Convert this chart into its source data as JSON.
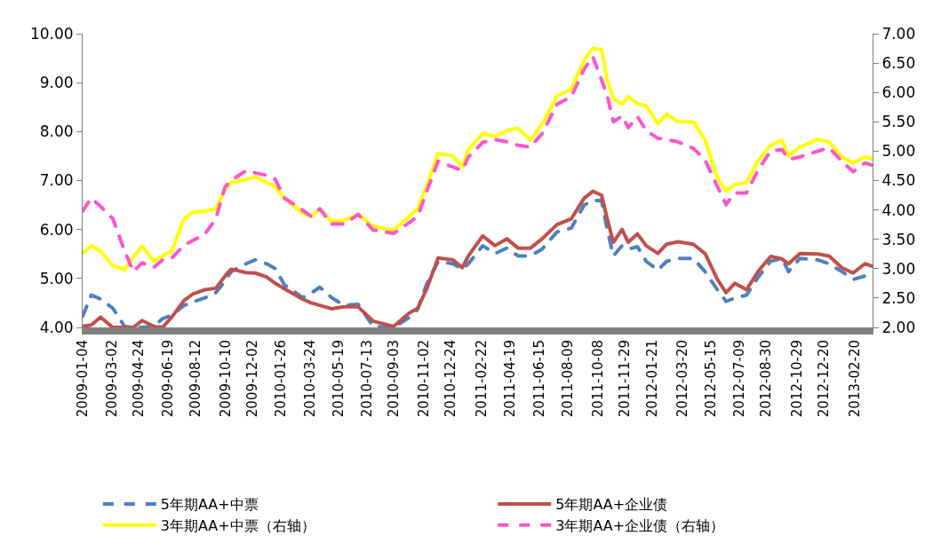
{
  "chart_data": {
    "type": "line",
    "x": [
      "2009-01-04",
      "2009-01-21",
      "2009-02-08",
      "2009-03-04",
      "2009-03-27",
      "2009-04-13",
      "2009-04-30",
      "2009-05-23",
      "2009-06-09",
      "2009-06-27",
      "2009-07-21",
      "2009-08-07",
      "2009-08-30",
      "2009-09-21",
      "2009-10-09",
      "2009-10-21",
      "2009-11-19",
      "2009-12-07",
      "2009-12-29",
      "2010-01-15",
      "2010-02-02",
      "2010-03-09",
      "2010-03-26",
      "2010-04-12",
      "2010-05-05",
      "2010-05-29",
      "2010-06-26",
      "2010-07-25",
      "2010-09-03",
      "2010-10-03",
      "2010-10-20",
      "2010-11-06",
      "2010-11-29",
      "2010-12-28",
      "2011-01-15",
      "2011-01-27",
      "2011-02-24",
      "2011-03-20",
      "2011-04-12",
      "2011-05-04",
      "2011-05-28",
      "2011-06-20",
      "2011-07-19",
      "2011-08-16",
      "2011-09-10",
      "2011-09-27",
      "2011-10-14",
      "2011-10-25",
      "2011-11-06",
      "2011-11-23",
      "2011-12-05",
      "2011-12-23",
      "2012-01-09",
      "2012-02-01",
      "2012-02-18",
      "2012-03-11",
      "2012-04-10",
      "2012-05-03",
      "2012-05-27",
      "2012-06-13",
      "2012-06-30",
      "2012-07-23",
      "2012-08-15",
      "2012-09-08",
      "2012-09-30",
      "2012-10-13",
      "2012-11-04",
      "2012-12-09",
      "2012-12-31",
      "2013-01-25",
      "2013-02-16",
      "2013-03-11",
      "2013-03-26"
    ],
    "series": [
      {
        "name": "5年期AA+中票",
        "color": "#4f81bd",
        "line_style": "dashed",
        "values": [
          4.23,
          4.66,
          4.58,
          4.39,
          4.02,
          4.0,
          4.0,
          4.02,
          4.18,
          4.25,
          4.45,
          4.52,
          4.6,
          4.71,
          4.95,
          5.14,
          5.3,
          5.38,
          5.3,
          5.2,
          4.87,
          4.61,
          4.7,
          4.82,
          4.61,
          4.45,
          4.47,
          4.02,
          4.0,
          4.2,
          4.37,
          4.87,
          5.35,
          5.3,
          5.19,
          5.3,
          5.67,
          5.51,
          5.62,
          5.46,
          5.46,
          5.6,
          5.95,
          6.03,
          6.5,
          6.59,
          6.59,
          6.0,
          5.46,
          5.67,
          5.6,
          5.65,
          5.35,
          5.17,
          5.35,
          5.41,
          5.41,
          5.14,
          4.77,
          4.53,
          4.6,
          4.66,
          5.03,
          5.35,
          5.41,
          5.14,
          5.41,
          5.38,
          5.3,
          5.14,
          4.98,
          5.05,
          5.11
        ]
      },
      {
        "name": "5年期AA+企业债",
        "color": "#c0504d",
        "line_style": "solid",
        "values": [
          4.02,
          4.05,
          4.21,
          4.0,
          4.0,
          4.0,
          4.14,
          4.02,
          4.0,
          4.21,
          4.55,
          4.68,
          4.77,
          4.8,
          5.05,
          5.19,
          5.12,
          5.11,
          5.03,
          4.9,
          4.79,
          4.58,
          4.5,
          4.45,
          4.38,
          4.42,
          4.42,
          4.13,
          4.02,
          4.29,
          4.39,
          4.77,
          5.42,
          5.38,
          5.22,
          5.46,
          5.87,
          5.67,
          5.81,
          5.62,
          5.62,
          5.81,
          6.1,
          6.22,
          6.64,
          6.78,
          6.7,
          6.22,
          5.74,
          6.0,
          5.74,
          5.91,
          5.67,
          5.51,
          5.7,
          5.75,
          5.7,
          5.51,
          4.98,
          4.71,
          4.9,
          4.77,
          5.15,
          5.45,
          5.4,
          5.3,
          5.51,
          5.5,
          5.46,
          5.22,
          5.11,
          5.3,
          5.25
        ]
      },
      {
        "name": "3年期AA+中票（右轴）",
        "color": "#ffff00",
        "line_style": "solid",
        "axis": "y2",
        "values": [
          3.26,
          3.39,
          3.3,
          3.05,
          2.98,
          3.2,
          3.38,
          3.13,
          3.22,
          3.3,
          3.85,
          3.96,
          3.98,
          4.02,
          4.35,
          4.47,
          4.52,
          4.56,
          4.47,
          4.39,
          4.2,
          3.95,
          3.89,
          4.02,
          3.8,
          3.82,
          3.93,
          3.72,
          3.65,
          3.89,
          4.02,
          4.4,
          4.96,
          4.92,
          4.73,
          5.03,
          5.3,
          5.25,
          5.35,
          5.39,
          5.19,
          5.46,
          5.94,
          6.06,
          6.55,
          6.75,
          6.73,
          6.21,
          5.9,
          5.8,
          5.93,
          5.81,
          5.77,
          5.47,
          5.63,
          5.5,
          5.5,
          5.19,
          4.55,
          4.32,
          4.43,
          4.47,
          4.85,
          5.1,
          5.19,
          4.92,
          5.07,
          5.2,
          5.16,
          4.9,
          4.8,
          4.9,
          4.87
        ]
      },
      {
        "name": "3年期AA+企业债（右轴）",
        "color": "#ff55cc",
        "line_style": "dashed",
        "axis": "y2",
        "values": [
          3.98,
          4.2,
          4.06,
          3.85,
          3.3,
          2.95,
          3.1,
          3.02,
          3.15,
          3.18,
          3.4,
          3.48,
          3.58,
          3.85,
          4.39,
          4.5,
          4.67,
          4.63,
          4.59,
          4.52,
          4.2,
          4.0,
          3.89,
          4.02,
          3.76,
          3.76,
          3.92,
          3.66,
          3.6,
          3.78,
          3.89,
          4.3,
          4.83,
          4.73,
          4.67,
          4.9,
          5.15,
          5.2,
          5.16,
          5.1,
          5.07,
          5.3,
          5.8,
          5.93,
          6.4,
          6.61,
          6.21,
          5.95,
          5.5,
          5.6,
          5.4,
          5.59,
          5.35,
          5.22,
          5.2,
          5.16,
          5.05,
          4.85,
          4.4,
          4.09,
          4.29,
          4.29,
          4.69,
          5.0,
          5.03,
          4.86,
          4.9,
          5.0,
          5.06,
          4.83,
          4.65,
          4.8,
          4.76
        ]
      }
    ],
    "xlim": [
      "2009-01-04",
      "2013-03-26"
    ],
    "xticks": [
      "2009-01-04",
      "2009-03-02",
      "2009-04-24",
      "2009-06-19",
      "2009-08-12",
      "2009-10-10",
      "2009-12-02",
      "2010-01-26",
      "2010-03-24",
      "2010-05-19",
      "2010-07-13",
      "2010-09-03",
      "2010-11-02",
      "2010-12-24",
      "2011-02-22",
      "2011-04-19",
      "2011-06-15",
      "2011-08-09",
      "2011-10-08",
      "2011-11-29",
      "2012-01-21",
      "2012-03-20",
      "2012-05-15",
      "2012-07-09",
      "2012-08-30",
      "2012-10-29",
      "2012-12-20",
      "2013-02-20"
    ],
    "ylim": [
      4,
      10
    ],
    "yticks": [
      {
        "value": 4,
        "label": "4.00"
      },
      {
        "value": 5,
        "label": "5.00"
      },
      {
        "value": 6,
        "label": "6.00"
      },
      {
        "value": 7,
        "label": "7.00"
      },
      {
        "value": 8,
        "label": "8.00"
      },
      {
        "value": 9,
        "label": "9.00"
      },
      {
        "value": 10,
        "label": "10.00"
      }
    ],
    "y2lim": [
      2,
      7
    ],
    "y2ticks": [
      {
        "value": 2,
        "label": "2.00"
      },
      {
        "value": 2.5,
        "label": "2.50"
      },
      {
        "value": 3,
        "label": "3.00"
      },
      {
        "value": 3.5,
        "label": "3.50"
      },
      {
        "value": 4,
        "label": "4.00"
      },
      {
        "value": 4.5,
        "label": "4.50"
      },
      {
        "value": 5,
        "label": "5.00"
      },
      {
        "value": 5.5,
        "label": "5.50"
      },
      {
        "value": 6,
        "label": "6.00"
      },
      {
        "value": 6.5,
        "label": "6.50"
      },
      {
        "value": 7,
        "label": "7.00"
      }
    ],
    "grid": false,
    "legend": "bottom",
    "marker": "none"
  }
}
